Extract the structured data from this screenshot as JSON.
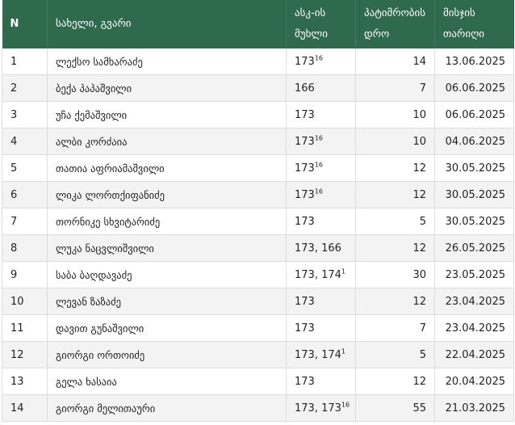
{
  "header": {
    "n": "N",
    "name": "სახელი, გვარი",
    "article_line1": "ასკ-ის",
    "article_line2": "მუხლი",
    "term_line1": "პატიმრობის",
    "term_line2": "დრო",
    "date_line1": "მისჯის",
    "date_line2": "თარიღი"
  },
  "rows": [
    {
      "n": "1",
      "name": "ლექსო სამხარაძე",
      "articles": [
        {
          "base": "173",
          "sup": "16"
        }
      ],
      "term": "14",
      "date": "13.06.2025"
    },
    {
      "n": "2",
      "name": "ბექა პაპაშვილი",
      "articles": [
        {
          "base": "166",
          "sup": ""
        }
      ],
      "term": "7",
      "date": "06.06.2025"
    },
    {
      "n": "3",
      "name": "უჩა ქემაშვილი",
      "articles": [
        {
          "base": "173",
          "sup": ""
        }
      ],
      "term": "10",
      "date": "06.06.2025"
    },
    {
      "n": "4",
      "name": "ალბი კორძაია",
      "articles": [
        {
          "base": "173",
          "sup": "16"
        }
      ],
      "term": "10",
      "date": "04.06.2025"
    },
    {
      "n": "5",
      "name": "თათია აფრიამაშვილი",
      "articles": [
        {
          "base": "173",
          "sup": "16"
        }
      ],
      "term": "12",
      "date": "30.05.2025"
    },
    {
      "n": "6",
      "name": "ლიკა ლორთქიფანიძე",
      "articles": [
        {
          "base": "173",
          "sup": "16"
        }
      ],
      "term": "12",
      "date": "30.05.2025"
    },
    {
      "n": "7",
      "name": "თორნიკე სხვიტარიძე",
      "articles": [
        {
          "base": "173",
          "sup": ""
        }
      ],
      "term": "5",
      "date": "30.05.2025"
    },
    {
      "n": "8",
      "name": "ლუკა ნაცვლიშვილი",
      "articles": [
        {
          "base": "173",
          "sup": ""
        },
        {
          "base": "166",
          "sup": ""
        }
      ],
      "term": "12",
      "date": "26.05.2025"
    },
    {
      "n": "9",
      "name": "საბა ბაღდავაძე",
      "articles": [
        {
          "base": "173",
          "sup": ""
        },
        {
          "base": "174",
          "sup": "1"
        }
      ],
      "term": "30",
      "date": "23.05.2025"
    },
    {
      "n": "10",
      "name": "ლევან ზაზაძე",
      "articles": [
        {
          "base": "173",
          "sup": ""
        }
      ],
      "term": "12",
      "date": "23.04.2025"
    },
    {
      "n": "11",
      "name": "დავით გუნაშვილი",
      "articles": [
        {
          "base": "173",
          "sup": ""
        }
      ],
      "term": "7",
      "date": "23.04.2025"
    },
    {
      "n": "12",
      "name": "გიორგი ორთოიძე",
      "articles": [
        {
          "base": "173",
          "sup": ""
        },
        {
          "base": "174",
          "sup": "1"
        }
      ],
      "term": "5",
      "date": "22.04.2025"
    },
    {
      "n": "13",
      "name": "გელა ხასაია",
      "articles": [
        {
          "base": "173",
          "sup": ""
        }
      ],
      "term": "12",
      "date": "20.04.2025"
    },
    {
      "n": "14",
      "name": "გიორგი მელითაური",
      "articles": [
        {
          "base": "173",
          "sup": ""
        },
        {
          "base": "173",
          "sup": "16"
        }
      ],
      "term": "55",
      "date": "21.03.2025"
    }
  ]
}
